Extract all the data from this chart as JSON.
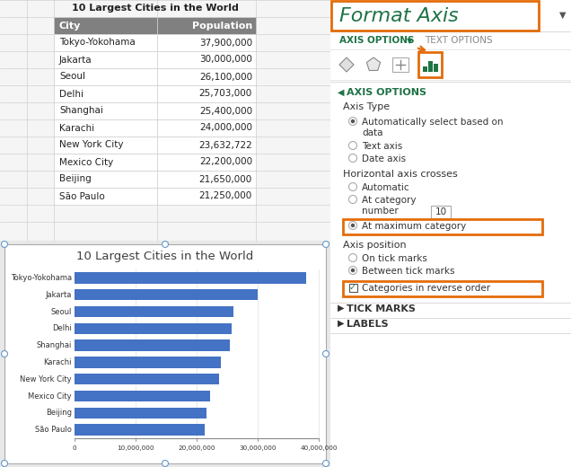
{
  "cities": [
    "Tokyo-Yokohama",
    "Jakarta",
    "Seoul",
    "Delhi",
    "Shanghai",
    "Karachi",
    "New York City",
    "Mexico City",
    "Beijing",
    "São Paulo"
  ],
  "populations": [
    37900000,
    30000000,
    26100000,
    25703000,
    25400000,
    24000000,
    23632722,
    22200000,
    21650000,
    21250000
  ],
  "pop_labels": [
    "37,900,000",
    "30,000,000",
    "26,100,000",
    "25,703,000",
    "25,400,000",
    "24,000,000",
    "23,632,722",
    "22,200,000",
    "21,650,000",
    "21,250,000"
  ],
  "bar_color": "#4472C4",
  "chart_title": "10 Largest Cities in the World",
  "table_title": "10 Largest Cities in the World",
  "header_bg": "#808080",
  "header_fg": "#FFFFFF",
  "grid_color": "#D0D0D0",
  "excel_bg": "#F0F0F0",
  "row_line_color": "#D0D0D0",
  "format_axis_title": "Format Axis",
  "format_axis_color": "#1F7346",
  "orange_color": "#E36C0A",
  "panel_bg": "#FAFAFA",
  "axis_options_color": "#1F7346",
  "xtick_labels": [
    "0",
    "10,000,000",
    "20,000,000",
    "30,000,000",
    "40,000,000"
  ],
  "xtick_values": [
    0,
    10000000,
    20000000,
    30000000,
    40000000
  ],
  "max_val": 40000000
}
